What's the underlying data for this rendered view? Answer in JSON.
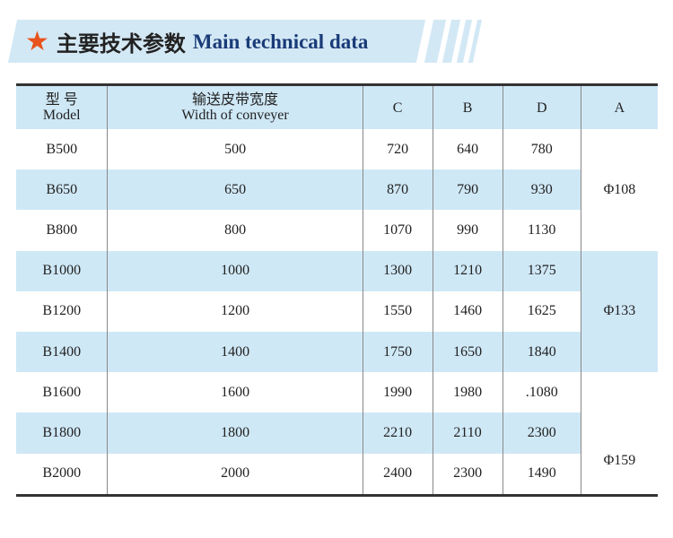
{
  "header": {
    "title_cn": "主要技术参数",
    "title_en": "Main technical data",
    "star_color": "#e8531c",
    "band_color": "#d3e8f5"
  },
  "table": {
    "columns": [
      {
        "cn": "型  号",
        "en": "Model"
      },
      {
        "cn": "输送皮带宽度",
        "en": "Width of conveyer"
      },
      {
        "cn": "",
        "en": "C"
      },
      {
        "cn": "",
        "en": "B"
      },
      {
        "cn": "",
        "en": "D"
      },
      {
        "cn": "",
        "en": "A"
      }
    ],
    "rows": [
      [
        "B500",
        "500",
        "720",
        "640",
        "780"
      ],
      [
        "B650",
        "650",
        "870",
        "790",
        "930"
      ],
      [
        "B800",
        "800",
        "1070",
        "990",
        "1130"
      ],
      [
        "B1000",
        "1000",
        "1300",
        "1210",
        "1375"
      ],
      [
        "B1200",
        "1200",
        "1550",
        "1460",
        "1625"
      ],
      [
        "B1400",
        "1400",
        "1750",
        "1650",
        "1840"
      ],
      [
        "B1600",
        "1600",
        "1990",
        "1980",
        ".1080"
      ],
      [
        "B1800",
        "1800",
        "2210",
        "2110",
        "2300"
      ],
      [
        "B2000",
        "2000",
        "2400",
        "2300",
        "1490"
      ]
    ],
    "a_groups": [
      {
        "value": "Φ108",
        "span": 3,
        "shaded": false
      },
      {
        "value": "Φ133",
        "span": 3,
        "shaded": true
      },
      {
        "value": "Φ159",
        "span": 3,
        "shaded": false,
        "align": "bottom"
      }
    ],
    "shade_color": "#cfe8f6"
  }
}
